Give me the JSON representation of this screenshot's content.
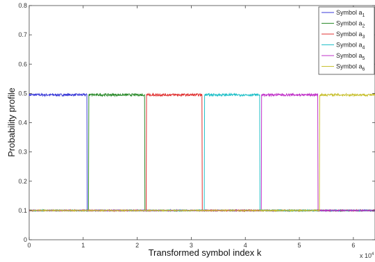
{
  "chart_data": {
    "type": "line",
    "title": "",
    "xlabel": "Transformed symbol index k",
    "ylabel": "Probability profile",
    "x_exponent_label": "x 10",
    "x_exponent_power": "4",
    "xlim": [
      0,
      6.4
    ],
    "ylim": [
      0,
      0.8
    ],
    "x_ticks": [
      0,
      1,
      2,
      3,
      4,
      5,
      6
    ],
    "y_ticks": [
      0,
      0.1,
      0.2,
      0.3,
      0.4,
      0.5,
      0.6,
      0.7,
      0.8
    ],
    "x_tick_labels": [
      "0",
      "1",
      "2",
      "3",
      "4",
      "5",
      "6"
    ],
    "y_tick_labels": [
      "0",
      "0.1",
      "0.2",
      "0.3",
      "0.4",
      "0.5",
      "0.6",
      "0.7",
      "0.8"
    ],
    "grid": false,
    "legend_position": "top-right",
    "baseline_value": 0.1,
    "high_value": 0.495,
    "series": [
      {
        "name": "Symbol a",
        "sub": "1",
        "color": "#3a3ad8",
        "high_start": 0.0,
        "high_end": 1.07
      },
      {
        "name": "Symbol a",
        "sub": "2",
        "color": "#2a8a2a",
        "high_start": 1.1,
        "high_end": 2.14
      },
      {
        "name": "Symbol a",
        "sub": "3",
        "color": "#e03030",
        "high_start": 2.17,
        "high_end": 3.2
      },
      {
        "name": "Symbol a",
        "sub": "4",
        "color": "#20c0c8",
        "high_start": 3.24,
        "high_end": 4.27
      },
      {
        "name": "Symbol a",
        "sub": "5",
        "color": "#c030c8",
        "high_start": 4.3,
        "high_end": 5.34
      },
      {
        "name": "Symbol a",
        "sub": "6",
        "color": "#c8c030",
        "high_start": 5.37,
        "high_end": 6.4
      }
    ]
  }
}
